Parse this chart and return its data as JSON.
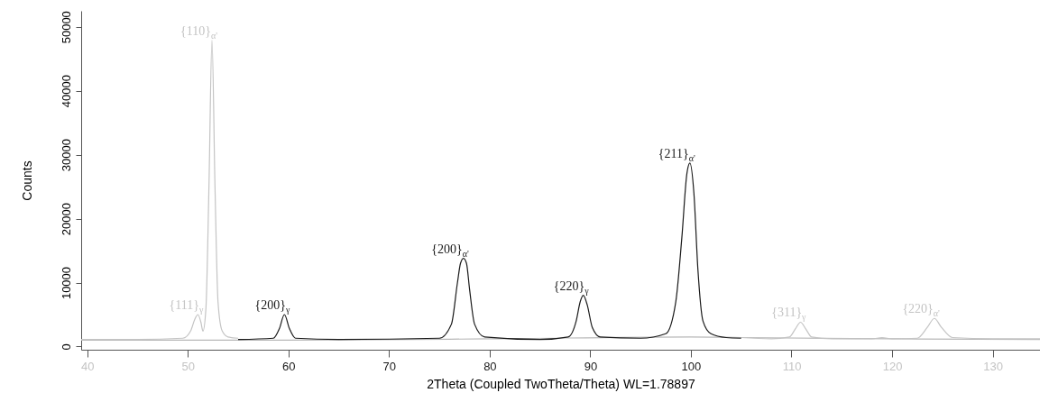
{
  "chart_data": {
    "type": "line",
    "xlabel": "2Theta (Coupled TwoTheta/Theta) WL=1.78897",
    "ylabel": "Counts",
    "xlim": [
      39.4,
      134.7
    ],
    "ylim": [
      -500,
      52500
    ],
    "xticks": [
      40,
      50,
      60,
      70,
      80,
      90,
      100,
      110,
      120,
      130
    ],
    "yticks": [
      0,
      10000,
      20000,
      30000,
      40000,
      50000
    ],
    "grid": false,
    "line_style": "solid",
    "series": [
      {
        "color": "#b8b8b8",
        "x": [
          39.4,
          60,
          80,
          100,
          105,
          120,
          134.7
        ],
        "values": [
          1000,
          1000,
          1200,
          1500,
          1400,
          1200,
          1100
        ]
      },
      {
        "color": "#c4c4c4",
        "x": [
          39.4,
          45,
          49.5,
          50.3,
          50.7,
          51.0,
          51.3,
          51.5,
          51.8,
          52.1,
          52.4,
          52.7,
          53.0,
          53.4,
          54,
          55,
          80,
          105,
          108,
          109.8,
          110.4,
          110.9,
          111.4,
          112,
          114,
          118,
          119,
          120,
          122.5,
          123.5,
          124.2,
          124.9,
          126,
          130,
          134.7
        ],
        "values": [
          1100,
          1100,
          1300,
          2500,
          4300,
          5000,
          3800,
          2400,
          6000,
          25000,
          47900,
          25000,
          7000,
          2500,
          1500,
          1300,
          null,
          1400,
          1200,
          1500,
          2800,
          3800,
          2800,
          1500,
          1200,
          1200,
          1400,
          1200,
          1300,
          3000,
          4400,
          3000,
          1400,
          1200,
          1200
        ]
      },
      {
        "color": "#1a1a1a",
        "x": [
          55,
          58.5,
          59.1,
          59.6,
          60.1,
          60.7,
          65,
          75,
          76.2,
          76.8,
          77.1,
          77.4,
          77.7,
          78,
          78.5,
          79.5,
          85,
          87.8,
          88.6,
          89.0,
          89.3,
          89.7,
          90.2,
          91,
          95,
          97.5,
          98.5,
          99.1,
          99.6,
          99.9,
          100.3,
          100.7,
          101.2,
          102,
          103.5,
          105
        ],
        "values": [
          1100,
          1300,
          2800,
          5000,
          2800,
          1300,
          1100,
          1300,
          3500,
          10000,
          13000,
          13800,
          13000,
          9000,
          3500,
          1500,
          1100,
          1500,
          4000,
          7000,
          8000,
          6500,
          3000,
          1500,
          1300,
          2000,
          7000,
          17000,
          27000,
          28700,
          24000,
          12000,
          4000,
          2000,
          1400,
          1300
        ]
      }
    ],
    "annotations": [
      {
        "text": "{110}$_{α'}$",
        "x": 52.4,
        "y": 47900
      },
      {
        "text": "{111}$_{γ}$",
        "x": 51.0,
        "y": 5000
      },
      {
        "text": "{200}$_{γ}$",
        "x": 59.6,
        "y": 5000
      },
      {
        "text": "{200}$_{α'}$",
        "x": 77.4,
        "y": 13800
      },
      {
        "text": "{220}$_{γ}$",
        "x": 89.3,
        "y": 8000
      },
      {
        "text": "{211}$_{α'}$",
        "x": 99.9,
        "y": 28700
      },
      {
        "text": "{311}$_{γ}$",
        "x": 110.9,
        "y": 3800
      },
      {
        "text": "{220}$_{α'}$",
        "x": 124.2,
        "y": 4400
      }
    ]
  }
}
